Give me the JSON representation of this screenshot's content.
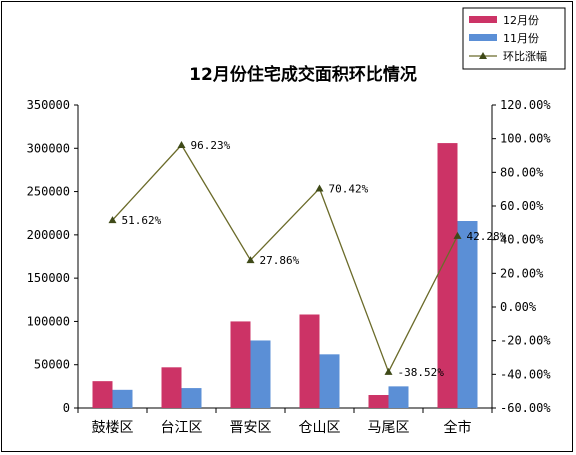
{
  "chart_data": {
    "type": "bar",
    "title": "12月份住宅成交面积环比情况",
    "categories": [
      "鼓楼区",
      "台江区",
      "晋安区",
      "仓山区",
      "马尾区",
      "全市"
    ],
    "series": [
      {
        "name": "12月份",
        "kind": "bar",
        "axis": "left",
        "color": "#CC3366",
        "values": [
          31000,
          47000,
          100000,
          108000,
          15000,
          306000
        ]
      },
      {
        "name": "11月份",
        "kind": "bar",
        "axis": "left",
        "color": "#5B8FD6",
        "values": [
          21000,
          23000,
          78000,
          62000,
          25000,
          216000
        ]
      },
      {
        "name": "环比涨幅",
        "kind": "line",
        "axis": "right",
        "color": "#6B6B2A",
        "marker": "triangle",
        "values": [
          51.62,
          96.23,
          27.86,
          70.42,
          -38.52,
          42.28
        ]
      }
    ],
    "data_labels": [
      "51.62%",
      "96.23%",
      "27.86%",
      "70.42%",
      "-38.52%",
      "42.28%"
    ],
    "ylim": [
      0,
      350000
    ],
    "y_ticks": [
      "350000",
      "300000",
      "250000",
      "200000",
      "150000",
      "100000",
      "50000",
      "0"
    ],
    "y2lim": [
      -60,
      120
    ],
    "y2_ticks": [
      "120.00%",
      "100.00%",
      "80.00%",
      "60.00%",
      "40.00%",
      "20.00%",
      "0.00%",
      "-20.00%",
      "-40.00%",
      "-60.00%"
    ],
    "grid": false,
    "legend_position": "top-right"
  }
}
